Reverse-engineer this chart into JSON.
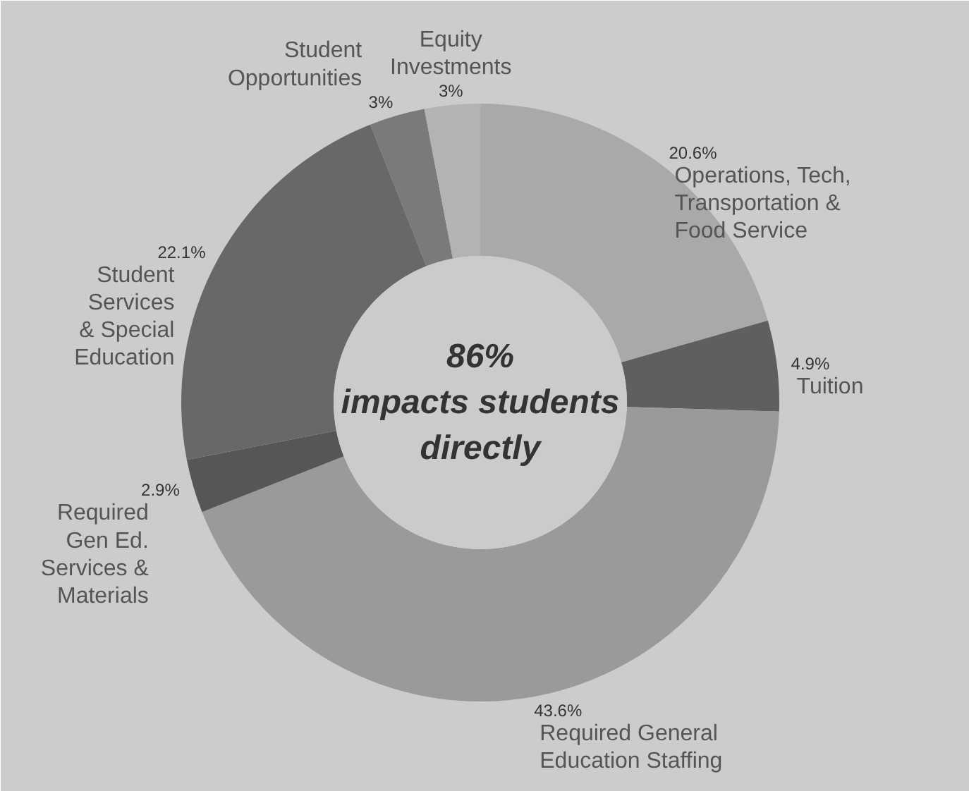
{
  "chart_data": {
    "type": "donut",
    "categories": [
      "Operations, Tech,\nTransportation &\nFood Service",
      "Tuition",
      "Required General\nEducation Staffing",
      "Required\nGen Ed.\nServices &\nMaterials",
      "Student\nServices\n& Special\nEducation",
      "Student\nOpportunities",
      "Equity\nInvestments"
    ],
    "values": [
      20.6,
      4.9,
      43.6,
      2.9,
      22.1,
      3,
      3
    ],
    "colors": [
      "#a9a9a9",
      "#5f5f5f",
      "#9a9a9a",
      "#565656",
      "#686868",
      "#7a7a7a",
      "#b3b3b3"
    ],
    "value_labels": [
      "20.6%",
      "4.9%",
      "43.6%",
      "2.9%",
      "22.1%",
      "3%",
      "3%"
    ],
    "annotations": [
      "86%\nimpacts students\ndirectly"
    ]
  }
}
